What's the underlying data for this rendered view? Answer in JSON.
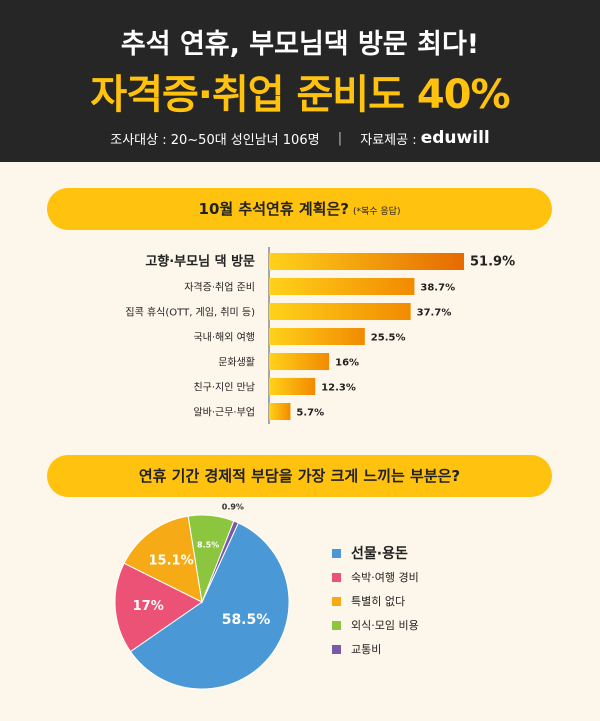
{
  "header": {
    "line1": "추석 연휴, 부모님댁 방문 최다!",
    "line2": "자격증·취업 준비도 40%",
    "survey_target": "조사대상 : 20~50대 성인남녀 106명",
    "separator": "|",
    "source_label": "자료제공 :",
    "brand": "eduwill"
  },
  "section1": {
    "title": "10월 추석연휴 계획은?",
    "note": "(*복수 응답)"
  },
  "section2": {
    "title": "연휴 기간 경제적 부담을 가장 크게 느끼는 부분은?"
  },
  "chart_data": [
    {
      "type": "bar",
      "orientation": "horizontal",
      "title": "10월 추석연휴 계획은?",
      "categories": [
        "고향·부모님 댁 방문",
        "자격증·취업 준비",
        "집콕 휴식(OTT, 게임, 취미 등)",
        "국내·해외 여행",
        "문화생활",
        "친구·지인 만남",
        "알바·근무·부업"
      ],
      "values": [
        51.9,
        38.7,
        37.7,
        25.5,
        16,
        12.3,
        5.7
      ],
      "value_labels": [
        "51.9%",
        "38.7%",
        "37.7%",
        "25.5%",
        "16%",
        "12.3%",
        "5.7%"
      ],
      "unit": "%",
      "colors": {
        "bar_start": "#ffd21a",
        "bar_end": "#f28a00",
        "top_bar_end": "#e66a00"
      }
    },
    {
      "type": "pie",
      "title": "연휴 기간 경제적 부담을 가장 크게 느끼는 부분은?",
      "categories": [
        "선물·용돈",
        "숙박·여행 경비",
        "특별히 없다",
        "외식·모임 비용",
        "교통비"
      ],
      "values": [
        58.5,
        17,
        15.1,
        8.5,
        0.9
      ],
      "value_labels": [
        "58.5%",
        "17%",
        "15.1%",
        "8.5%",
        "0.9%"
      ],
      "colors": [
        "#4a98d6",
        "#ec5276",
        "#f5aa16",
        "#8cc63f",
        "#7a5aa6"
      ],
      "legend": "right"
    }
  ]
}
